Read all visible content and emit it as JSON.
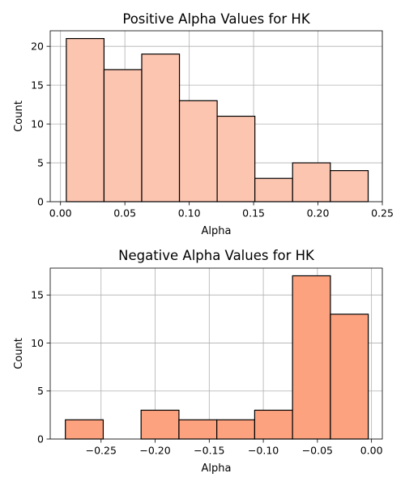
{
  "chart_data": [
    {
      "type": "bar",
      "title": "Positive Alpha Values for HK",
      "xlabel": "Alpha",
      "ylabel": "Count",
      "color": "#fcc5b0",
      "xlim": [
        -0.008,
        0.25
      ],
      "ylim": [
        0,
        22
      ],
      "xticks": [
        0.0,
        0.05,
        0.1,
        0.15,
        0.2,
        0.25
      ],
      "xtick_labels": [
        "0.00",
        "0.05",
        "0.10",
        "0.15",
        "0.20",
        "0.25"
      ],
      "yticks": [
        0,
        5,
        10,
        15,
        20
      ],
      "ytick_labels": [
        "0",
        "5",
        "10",
        "15",
        "20"
      ],
      "grid": true,
      "bins": [
        {
          "x0": 0.0045,
          "x1": 0.0338,
          "count": 21
        },
        {
          "x0": 0.0338,
          "x1": 0.0631,
          "count": 17
        },
        {
          "x0": 0.0631,
          "x1": 0.0924,
          "count": 19
        },
        {
          "x0": 0.0924,
          "x1": 0.1217,
          "count": 13
        },
        {
          "x0": 0.1217,
          "x1": 0.151,
          "count": 11
        },
        {
          "x0": 0.151,
          "x1": 0.1803,
          "count": 3
        },
        {
          "x0": 0.1803,
          "x1": 0.2096,
          "count": 5
        },
        {
          "x0": 0.2096,
          "x1": 0.239,
          "count": 4
        }
      ]
    },
    {
      "type": "bar",
      "title": "Negative Alpha Values for HK",
      "xlabel": "Alpha",
      "ylabel": "Count",
      "color": "#fca27f",
      "xlim": [
        -0.297,
        0.01
      ],
      "ylim": [
        0,
        17.8
      ],
      "xticks": [
        -0.25,
        -0.2,
        -0.15,
        -0.1,
        -0.05,
        0.0
      ],
      "xtick_labels": [
        "−0.25",
        "−0.20",
        "−0.15",
        "−0.10",
        "−0.05",
        "0.00"
      ],
      "yticks": [
        0,
        5,
        10,
        15
      ],
      "ytick_labels": [
        "0",
        "5",
        "10",
        "15"
      ],
      "grid": true,
      "bins": [
        {
          "x0": -0.283,
          "x1": -0.248,
          "count": 2
        },
        {
          "x0": -0.248,
          "x1": -0.213,
          "count": 0
        },
        {
          "x0": -0.213,
          "x1": -0.178,
          "count": 3
        },
        {
          "x0": -0.178,
          "x1": -0.143,
          "count": 2
        },
        {
          "x0": -0.143,
          "x1": -0.108,
          "count": 2
        },
        {
          "x0": -0.108,
          "x1": -0.073,
          "count": 3
        },
        {
          "x0": -0.073,
          "x1": -0.038,
          "count": 17
        },
        {
          "x0": -0.038,
          "x1": -0.003,
          "count": 13
        }
      ]
    }
  ]
}
